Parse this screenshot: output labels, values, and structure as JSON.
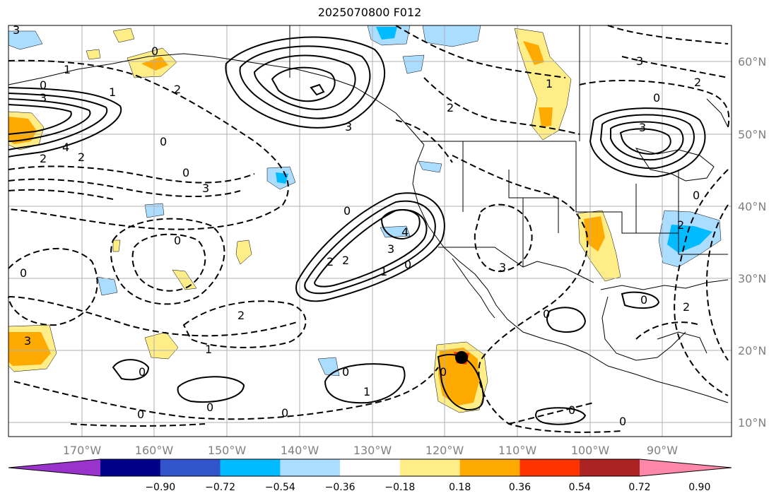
{
  "title": "2025070800 F012",
  "lat_labels": [
    "60°N",
    "50°N",
    "40°N",
    "30°N",
    "20°N",
    "10°N"
  ],
  "lon_labels": [
    "170°W",
    "160°W",
    "150°W",
    "140°W",
    "130°W",
    "120°W",
    "110°W",
    "100°W",
    "90°W"
  ],
  "colorbar": {
    "tick_labels": [
      "−0.90",
      "−0.72",
      "−0.54",
      "−0.36",
      "−0.18",
      "0.18",
      "0.36",
      "0.54",
      "0.72",
      "0.90"
    ],
    "colors": [
      "#9933cc",
      "#000088",
      "#3355cc",
      "#00bbff",
      "#aaddff",
      "#ffffff",
      "#ffee88",
      "#ffaa00",
      "#ff3300",
      "#aa2222",
      "#ff88aa"
    ]
  },
  "contour_labels": [
    "3",
    "0",
    "1",
    "0",
    "3",
    "4",
    "2",
    "0",
    "2",
    "3",
    "0",
    "1",
    "2",
    "3",
    "0",
    "3",
    "2",
    "0",
    "4",
    "2",
    "3",
    "3",
    "0",
    "2",
    "2",
    "3",
    "1",
    "0",
    "3",
    "2",
    "1",
    "0",
    "0",
    "0",
    "2",
    "1",
    "0",
    "0",
    "0",
    "1",
    "0",
    "0",
    "0",
    "0",
    "0",
    "2",
    "0"
  ],
  "marker": {
    "name": "black-dot",
    "lon": -117,
    "lat": 19
  },
  "colors": {
    "axis_label": "#808080",
    "grid": "#b0b0b0",
    "contour": "#000000"
  }
}
